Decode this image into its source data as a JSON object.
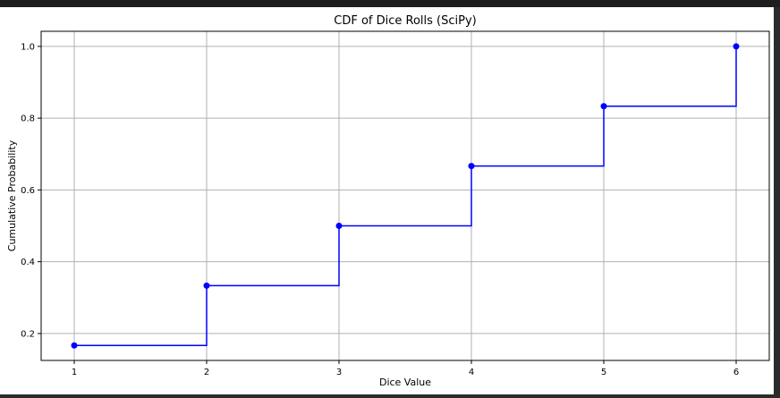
{
  "chart_data": {
    "type": "line",
    "step": "post",
    "title": "CDF of Dice Rolls (SciPy)",
    "xlabel": "Dice Value",
    "ylabel": "Cumulative Probability",
    "x": [
      1,
      2,
      3,
      4,
      5,
      6
    ],
    "y": [
      0.1667,
      0.3333,
      0.5,
      0.6667,
      0.8333,
      1.0
    ],
    "xticks": [
      "1",
      "2",
      "3",
      "4",
      "5",
      "6"
    ],
    "yticks": [
      "0.2",
      "0.4",
      "0.6",
      "0.8",
      "1.0"
    ],
    "xlim": [
      0.75,
      6.25
    ],
    "ylim": [
      0.125,
      1.042
    ],
    "grid": true,
    "series_color": "#0000ff",
    "grid_color": "#b0b0b0",
    "marker": "circle"
  }
}
